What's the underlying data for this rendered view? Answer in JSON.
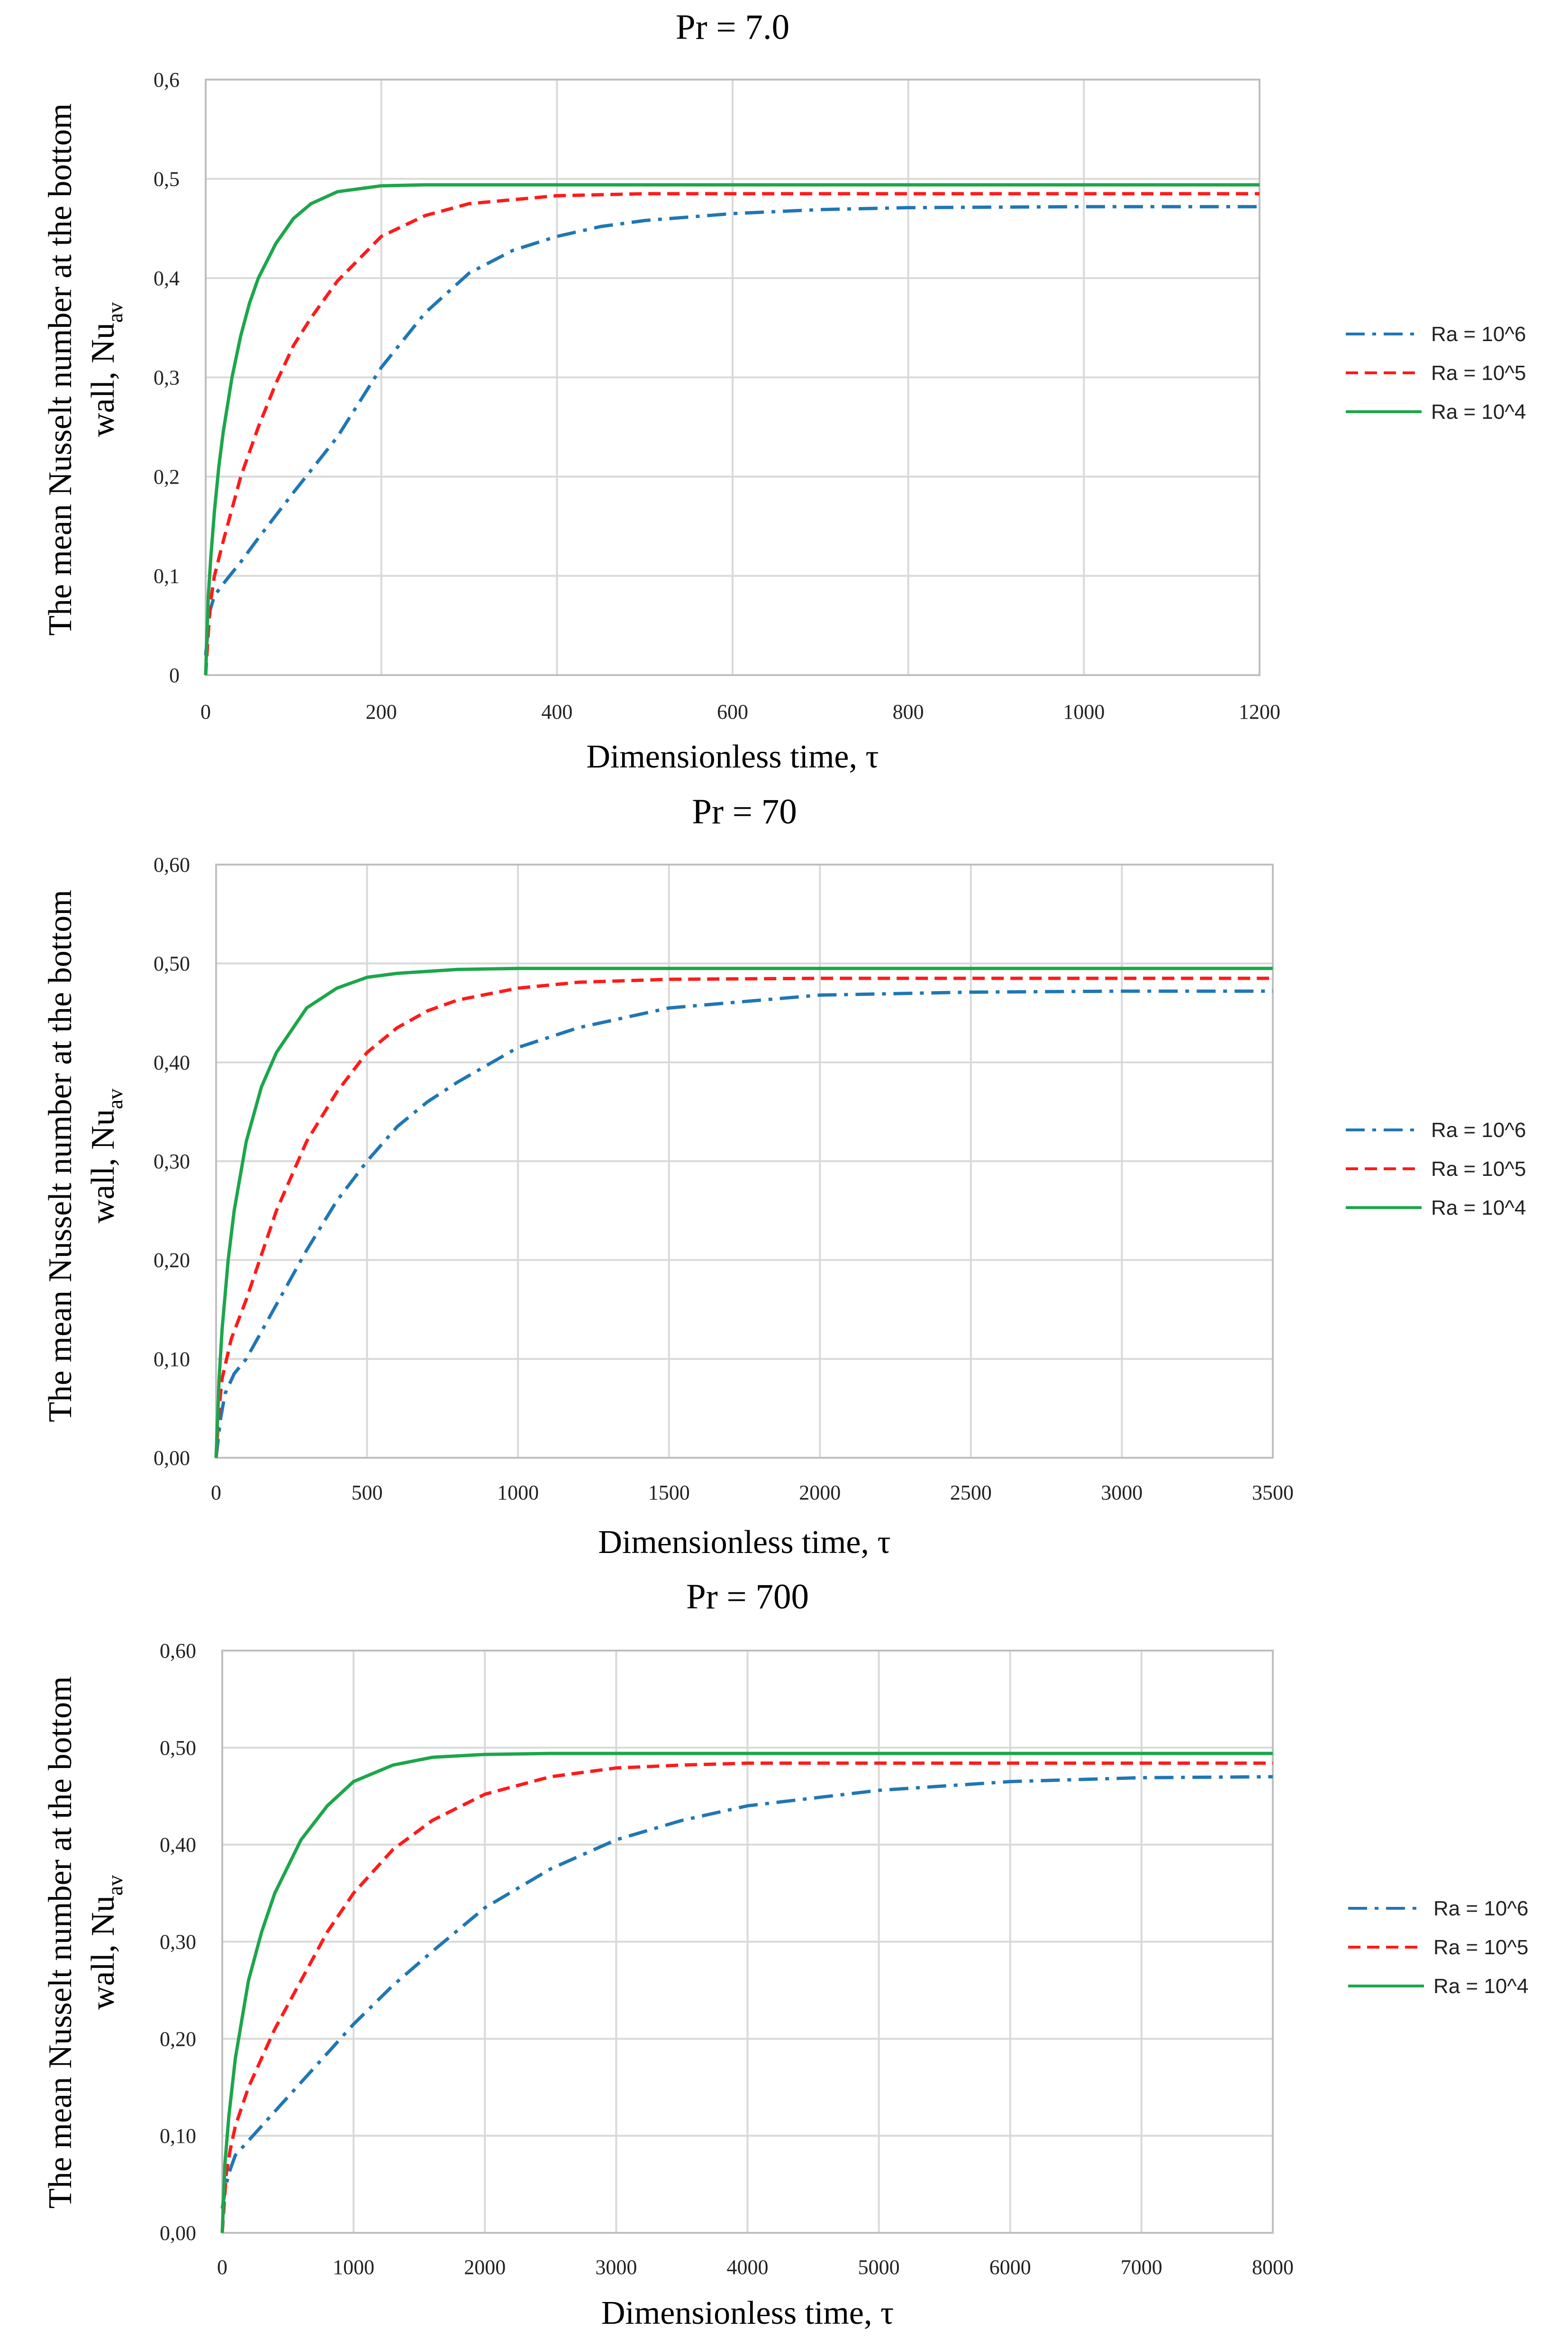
{
  "y_label_line1": "The mean Nusselt number at the bottom",
  "y_label_line2_prefix": "wall, Nu",
  "y_label_line2_sub": "av",
  "legend_labels": [
    "Ra = 10^6",
    "Ra = 10^5",
    "Ra = 10^4"
  ],
  "series_colors": [
    "#1f77b4",
    "#ff1a1a",
    "#1ca64b"
  ],
  "chart_data": [
    {
      "type": "line",
      "title": "Pr = 7.0",
      "xlabel": "Dimensionless time, τ",
      "ylabel": "The mean Nusselt number at the bottom wall, Nu_av",
      "xlim": [
        0,
        1200
      ],
      "ylim": [
        0,
        0.6
      ],
      "x_ticks": [
        0,
        200,
        400,
        600,
        800,
        1000,
        1200
      ],
      "x_tick_labels": [
        "0",
        "200",
        "400",
        "600",
        "800",
        "1000",
        "1200"
      ],
      "y_ticks": [
        0,
        0.1,
        0.2,
        0.3,
        0.4,
        0.5,
        0.6
      ],
      "y_tick_labels": [
        "0",
        "0,1",
        "0,2",
        "0,3",
        "0,4",
        "0,5",
        "0,6"
      ],
      "grid": true,
      "legend": "right",
      "series": [
        {
          "name": "Ra = 10^6",
          "style": "dash-dot",
          "x": [
            0,
            5,
            10,
            20,
            40,
            60,
            80,
            100,
            125,
            150,
            200,
            250,
            300,
            350,
            400,
            450,
            500,
            600,
            700,
            800,
            1000,
            1200
          ],
          "y": [
            0.02,
            0.065,
            0.08,
            0.092,
            0.114,
            0.138,
            0.161,
            0.184,
            0.212,
            0.24,
            0.31,
            0.365,
            0.405,
            0.428,
            0.442,
            0.452,
            0.458,
            0.465,
            0.469,
            0.471,
            0.472,
            0.472
          ]
        },
        {
          "name": "Ra = 10^5",
          "style": "dashed",
          "x": [
            0,
            5,
            10,
            20,
            40,
            60,
            80,
            100,
            120,
            150,
            200,
            250,
            300,
            400,
            500,
            600,
            800,
            1000,
            1200
          ],
          "y": [
            0.0,
            0.07,
            0.1,
            0.135,
            0.2,
            0.25,
            0.294,
            0.332,
            0.36,
            0.397,
            0.442,
            0.463,
            0.475,
            0.483,
            0.485,
            0.485,
            0.485,
            0.485,
            0.485
          ]
        },
        {
          "name": "Ra = 10^4",
          "style": "solid",
          "x": [
            0,
            3,
            6,
            10,
            15,
            20,
            30,
            40,
            50,
            60,
            80,
            100,
            120,
            150,
            200,
            250,
            300,
            400,
            600,
            800,
            1000,
            1200
          ],
          "y": [
            0.0,
            0.08,
            0.12,
            0.165,
            0.21,
            0.245,
            0.3,
            0.342,
            0.375,
            0.4,
            0.435,
            0.46,
            0.475,
            0.487,
            0.493,
            0.494,
            0.494,
            0.494,
            0.494,
            0.494,
            0.494,
            0.494
          ]
        }
      ]
    },
    {
      "type": "line",
      "title": "Pr = 70",
      "xlabel": "Dimensionless time, τ",
      "ylabel": "The mean Nusselt number at the bottom wall, Nu_av",
      "xlim": [
        0,
        3500
      ],
      "ylim": [
        0,
        0.6
      ],
      "x_ticks": [
        0,
        500,
        1000,
        1500,
        2000,
        2500,
        3000,
        3500
      ],
      "x_tick_labels": [
        "0",
        "500",
        "1000",
        "1500",
        "2000",
        "2500",
        "3000",
        "3500"
      ],
      "y_ticks": [
        0,
        0.1,
        0.2,
        0.3,
        0.4,
        0.5,
        0.6
      ],
      "y_tick_labels": [
        "0,00",
        "0,10",
        "0,20",
        "0,30",
        "0,40",
        "0,50",
        "0,60"
      ],
      "grid": true,
      "legend": "right",
      "series": [
        {
          "name": "Ra = 10^6",
          "style": "dash-dot",
          "x": [
            0,
            15,
            30,
            60,
            100,
            200,
            300,
            400,
            500,
            600,
            700,
            800,
            1000,
            1200,
            1500,
            2000,
            2500,
            3000,
            3500
          ],
          "y": [
            0.0,
            0.04,
            0.065,
            0.085,
            0.1,
            0.155,
            0.21,
            0.26,
            0.3,
            0.335,
            0.36,
            0.38,
            0.415,
            0.435,
            0.455,
            0.468,
            0.471,
            0.472,
            0.472
          ]
        },
        {
          "name": "Ra = 10^5",
          "style": "dashed",
          "x": [
            0,
            10,
            20,
            50,
            100,
            200,
            300,
            400,
            500,
            600,
            700,
            800,
            1000,
            1200,
            1500,
            2000,
            2500,
            3000,
            3500
          ],
          "y": [
            0.0,
            0.05,
            0.08,
            0.12,
            0.16,
            0.25,
            0.32,
            0.37,
            0.41,
            0.435,
            0.452,
            0.463,
            0.475,
            0.481,
            0.484,
            0.485,
            0.485,
            0.485,
            0.485
          ]
        },
        {
          "name": "Ra = 10^4",
          "style": "solid",
          "x": [
            0,
            10,
            20,
            40,
            60,
            100,
            150,
            200,
            300,
            400,
            500,
            600,
            800,
            1000,
            1500,
            2000,
            2500,
            3000,
            3500
          ],
          "y": [
            0.0,
            0.08,
            0.13,
            0.2,
            0.25,
            0.32,
            0.375,
            0.41,
            0.455,
            0.475,
            0.486,
            0.49,
            0.494,
            0.495,
            0.495,
            0.495,
            0.495,
            0.495,
            0.495
          ]
        }
      ]
    },
    {
      "type": "line",
      "title": "Pr = 700",
      "xlabel": "Dimensionless time, τ",
      "ylabel": "The mean Nusselt number at the bottom wall, Nu_av",
      "xlim": [
        0,
        8000
      ],
      "ylim": [
        0,
        0.6
      ],
      "x_ticks": [
        0,
        1000,
        2000,
        3000,
        4000,
        5000,
        6000,
        7000,
        8000
      ],
      "x_tick_labels": [
        "0",
        "1000",
        "2000",
        "3000",
        "4000",
        "5000",
        "6000",
        "7000",
        "8000"
      ],
      "y_ticks": [
        0,
        0.1,
        0.2,
        0.3,
        0.4,
        0.5,
        0.6
      ],
      "y_tick_labels": [
        "0,00",
        "0,10",
        "0,20",
        "0,30",
        "0,40",
        "0,50",
        "0,60"
      ],
      "grid": true,
      "legend": "right",
      "series": [
        {
          "name": "Ra = 10^6",
          "style": "dash-dot",
          "x": [
            0,
            30,
            60,
            100,
            200,
            300,
            500,
            700,
            1000,
            1300,
            1600,
            2000,
            2500,
            3000,
            3500,
            4000,
            5000,
            6000,
            7000,
            8000
          ],
          "y": [
            0.025,
            0.05,
            0.065,
            0.08,
            0.095,
            0.11,
            0.14,
            0.17,
            0.215,
            0.255,
            0.29,
            0.335,
            0.375,
            0.405,
            0.425,
            0.44,
            0.456,
            0.465,
            0.469,
            0.47
          ]
        },
        {
          "name": "Ra = 10^5",
          "style": "dashed",
          "x": [
            0,
            30,
            60,
            100,
            200,
            400,
            600,
            800,
            1000,
            1300,
            1600,
            2000,
            2500,
            3000,
            3500,
            4000,
            5000,
            6000,
            7000,
            8000
          ],
          "y": [
            0.0,
            0.06,
            0.085,
            0.11,
            0.15,
            0.21,
            0.26,
            0.31,
            0.35,
            0.395,
            0.425,
            0.452,
            0.47,
            0.479,
            0.482,
            0.484,
            0.484,
            0.484,
            0.484,
            0.484
          ]
        },
        {
          "name": "Ra = 10^4",
          "style": "solid",
          "x": [
            0,
            20,
            50,
            100,
            200,
            300,
            400,
            600,
            800,
            1000,
            1300,
            1600,
            2000,
            2500,
            3000,
            4000,
            5000,
            6000,
            7000,
            8000
          ],
          "y": [
            0.0,
            0.07,
            0.12,
            0.18,
            0.26,
            0.31,
            0.35,
            0.405,
            0.44,
            0.465,
            0.482,
            0.49,
            0.493,
            0.494,
            0.494,
            0.494,
            0.494,
            0.494,
            0.494,
            0.494
          ]
        }
      ]
    }
  ]
}
